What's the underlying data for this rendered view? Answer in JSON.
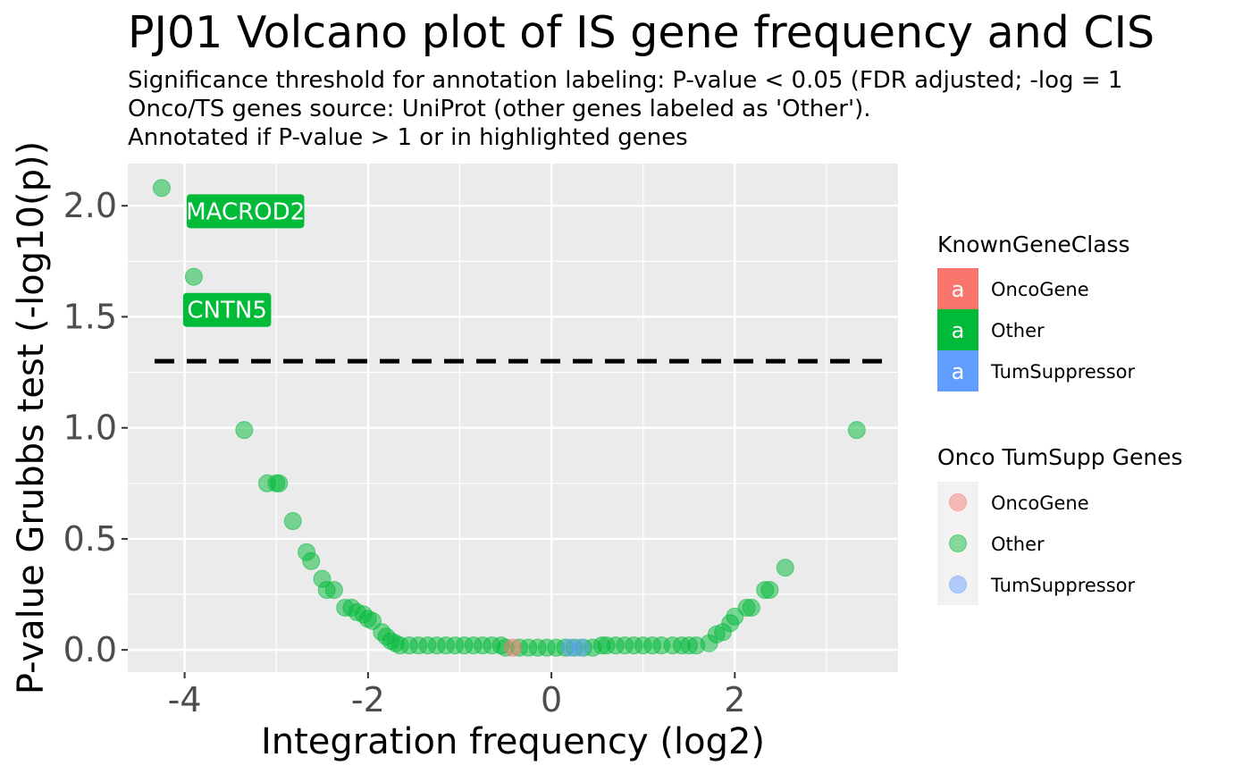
{
  "chart_data": {
    "type": "scatter",
    "title": "PJ01 Volcano plot of IS gene frequency and CIS",
    "subtitle_lines": [
      "Significance threshold for annotation labeling: P-value < 0.05 (FDR adjusted; -log = 1",
      "Onco/TS genes source: UniProt (other genes labeled as 'Other').",
      "Annotated if P-value > 1 or in highlighted genes"
    ],
    "xlabel": "Integration frequency (log2)",
    "ylabel": "P-value Grubbs test (-log10(p))",
    "xlim": [
      -4.62,
      3.78
    ],
    "ylim": [
      -0.1,
      2.19
    ],
    "x_ticks": [
      -4,
      -2,
      0,
      2
    ],
    "x_tick_labels": [
      "-4",
      "-2",
      "0",
      "2"
    ],
    "y_ticks": [
      0,
      0.5,
      1,
      1.5,
      2
    ],
    "y_tick_labels": [
      "0.0",
      "0.5",
      "1.0",
      "1.5",
      "2.0"
    ],
    "threshold_line": {
      "y": 1.3,
      "style": "dashed",
      "color": "#000000"
    },
    "grid": true,
    "legend_position": "right",
    "colors": {
      "OncoGene": "#F8766D",
      "Other": "#00BA38",
      "TumSuppressor": "#619CFF"
    },
    "series": [
      {
        "name": "Other",
        "points": [
          [
            -4.25,
            2.08
          ],
          [
            -3.9,
            1.68
          ],
          [
            -3.35,
            0.99
          ],
          [
            -3.1,
            0.75
          ],
          [
            -3.0,
            0.75
          ],
          [
            -2.97,
            0.75
          ],
          [
            -2.82,
            0.58
          ],
          [
            -2.67,
            0.44
          ],
          [
            -2.62,
            0.4
          ],
          [
            -2.5,
            0.32
          ],
          [
            -2.45,
            0.27
          ],
          [
            -2.37,
            0.27
          ],
          [
            -2.25,
            0.19
          ],
          [
            -2.18,
            0.19
          ],
          [
            -2.12,
            0.17
          ],
          [
            -2.05,
            0.16
          ],
          [
            -2.0,
            0.14
          ],
          [
            -1.95,
            0.13
          ],
          [
            -1.85,
            0.08
          ],
          [
            -1.8,
            0.06
          ],
          [
            -1.75,
            0.04
          ],
          [
            -1.7,
            0.03
          ],
          [
            -1.65,
            0.02
          ],
          [
            -1.55,
            0.02
          ],
          [
            -1.45,
            0.02
          ],
          [
            -1.35,
            0.02
          ],
          [
            -1.25,
            0.02
          ],
          [
            -1.15,
            0.02
          ],
          [
            -1.05,
            0.02
          ],
          [
            -0.95,
            0.02
          ],
          [
            -0.85,
            0.02
          ],
          [
            -0.75,
            0.02
          ],
          [
            -0.65,
            0.02
          ],
          [
            -0.55,
            0.02
          ],
          [
            -0.5,
            0.01
          ],
          [
            -0.35,
            0.01
          ],
          [
            -0.25,
            0.01
          ],
          [
            -0.15,
            0.01
          ],
          [
            -0.05,
            0.01
          ],
          [
            0.05,
            0.01
          ],
          [
            0.15,
            0.01
          ],
          [
            0.25,
            0.01
          ],
          [
            0.35,
            0.01
          ],
          [
            0.45,
            0.01
          ],
          [
            0.55,
            0.02
          ],
          [
            0.6,
            0.02
          ],
          [
            0.7,
            0.02
          ],
          [
            0.8,
            0.02
          ],
          [
            0.9,
            0.02
          ],
          [
            1.0,
            0.02
          ],
          [
            1.1,
            0.02
          ],
          [
            1.2,
            0.02
          ],
          [
            1.32,
            0.02
          ],
          [
            1.42,
            0.02
          ],
          [
            1.5,
            0.02
          ],
          [
            1.58,
            0.02
          ],
          [
            1.72,
            0.03
          ],
          [
            1.8,
            0.07
          ],
          [
            1.87,
            0.08
          ],
          [
            1.95,
            0.12
          ],
          [
            2.0,
            0.15
          ],
          [
            2.13,
            0.19
          ],
          [
            2.18,
            0.19
          ],
          [
            2.33,
            0.27
          ],
          [
            2.38,
            0.27
          ],
          [
            2.55,
            0.37
          ],
          [
            3.33,
            0.99
          ]
        ]
      },
      {
        "name": "OncoGene",
        "points": [
          [
            -0.42,
            0.01
          ]
        ]
      },
      {
        "name": "TumSuppressor",
        "points": [
          [
            0.2,
            0.01
          ],
          [
            0.32,
            0.01
          ]
        ]
      }
    ],
    "annotations": [
      {
        "label": "MACROD2",
        "x": -4.25,
        "y": 2.08,
        "class": "Other"
      },
      {
        "label": "CNTN5",
        "x": -3.9,
        "y": 1.68,
        "class": "Other"
      }
    ],
    "legends": [
      {
        "title": "KnownGeneClass",
        "key_glyph": "a",
        "items": [
          "OncoGene",
          "Other",
          "TumSuppressor"
        ]
      },
      {
        "title": "Onco TumSupp Genes",
        "items": [
          "OncoGene",
          "Other",
          "TumSuppressor"
        ]
      }
    ]
  }
}
